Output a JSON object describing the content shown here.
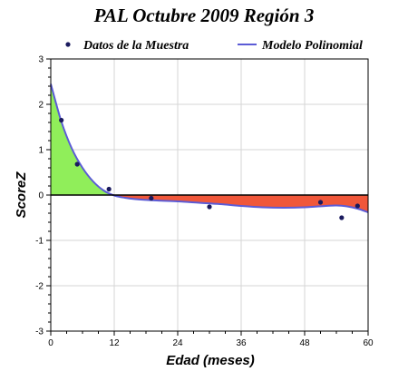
{
  "chart_data": {
    "type": "line",
    "title": "PAL Octubre 2009 Región 3",
    "xlabel": "Edad (meses)",
    "ylabel": "ScoreZ",
    "xlim": [
      0,
      60
    ],
    "ylim": [
      -3,
      3
    ],
    "x_ticks": [
      "0",
      "12",
      "24",
      "36",
      "48",
      "60"
    ],
    "y_ticks": [
      "-3",
      "-2",
      "-1",
      "0",
      "1",
      "2",
      "3"
    ],
    "grid": true,
    "legend_position": "top",
    "legend": [
      "Datos de la Muestra",
      "Modelo Polinomial"
    ],
    "series": [
      {
        "name": "Datos de la Muestra",
        "style": "points",
        "color": "#1a1a5e",
        "points": [
          {
            "x": 2,
            "y": 1.65
          },
          {
            "x": 5,
            "y": 0.68
          },
          {
            "x": 11,
            "y": 0.13
          },
          {
            "x": 19,
            "y": -0.07
          },
          {
            "x": 30,
            "y": -0.26
          },
          {
            "x": 51,
            "y": -0.16
          },
          {
            "x": 55,
            "y": -0.5
          },
          {
            "x": 58,
            "y": -0.24
          }
        ]
      },
      {
        "name": "Modelo Polinomial",
        "style": "curve",
        "color": "#5b5bd6",
        "points": [
          {
            "x": 0,
            "y": 2.45
          },
          {
            "x": 2,
            "y": 1.62
          },
          {
            "x": 4,
            "y": 1.02
          },
          {
            "x": 6,
            "y": 0.6
          },
          {
            "x": 8,
            "y": 0.3
          },
          {
            "x": 10,
            "y": 0.1
          },
          {
            "x": 12,
            "y": -0.01
          },
          {
            "x": 14,
            "y": -0.06
          },
          {
            "x": 16,
            "y": -0.09
          },
          {
            "x": 20,
            "y": -0.12
          },
          {
            "x": 24,
            "y": -0.14
          },
          {
            "x": 28,
            "y": -0.17
          },
          {
            "x": 32,
            "y": -0.2
          },
          {
            "x": 36,
            "y": -0.24
          },
          {
            "x": 40,
            "y": -0.27
          },
          {
            "x": 44,
            "y": -0.28
          },
          {
            "x": 48,
            "y": -0.27
          },
          {
            "x": 52,
            "y": -0.24
          },
          {
            "x": 54,
            "y": -0.23
          },
          {
            "x": 56,
            "y": -0.25
          },
          {
            "x": 58,
            "y": -0.3
          },
          {
            "x": 60,
            "y": -0.38
          }
        ]
      }
    ],
    "fill_above_zero_color": "#90ee5a",
    "fill_below_zero_color": "#f0573a"
  }
}
